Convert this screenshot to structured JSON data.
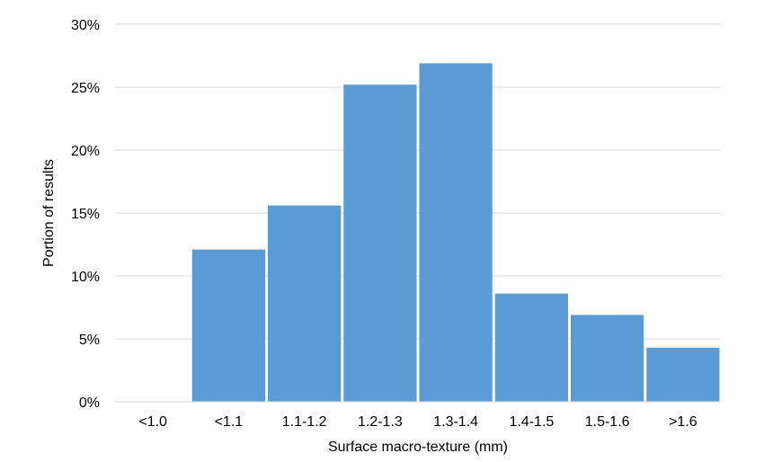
{
  "chart_data": {
    "type": "bar",
    "title": "",
    "xlabel": "Surface macro-texture (mm)",
    "ylabel": "Portion of results",
    "categories": [
      "<1.0",
      "<1.1",
      "1.1-1.2",
      "1.2-1.3",
      "1.3-1.4",
      "1.4-1.5",
      "1.5-1.6",
      ">1.6"
    ],
    "values": [
      0,
      12.1,
      15.6,
      25.2,
      26.9,
      8.6,
      6.9,
      4.3
    ],
    "value_unit": "%",
    "ylim": [
      0,
      30
    ],
    "yticks": [
      "0%",
      "5%",
      "10%",
      "15%",
      "20%",
      "25%",
      "30%"
    ],
    "ytick_values": [
      0,
      5,
      10,
      15,
      20,
      25,
      30
    ],
    "grid": true,
    "legend": "none",
    "bar_color": "#5b9bd5",
    "gridline_color": "#d9d9d9"
  }
}
